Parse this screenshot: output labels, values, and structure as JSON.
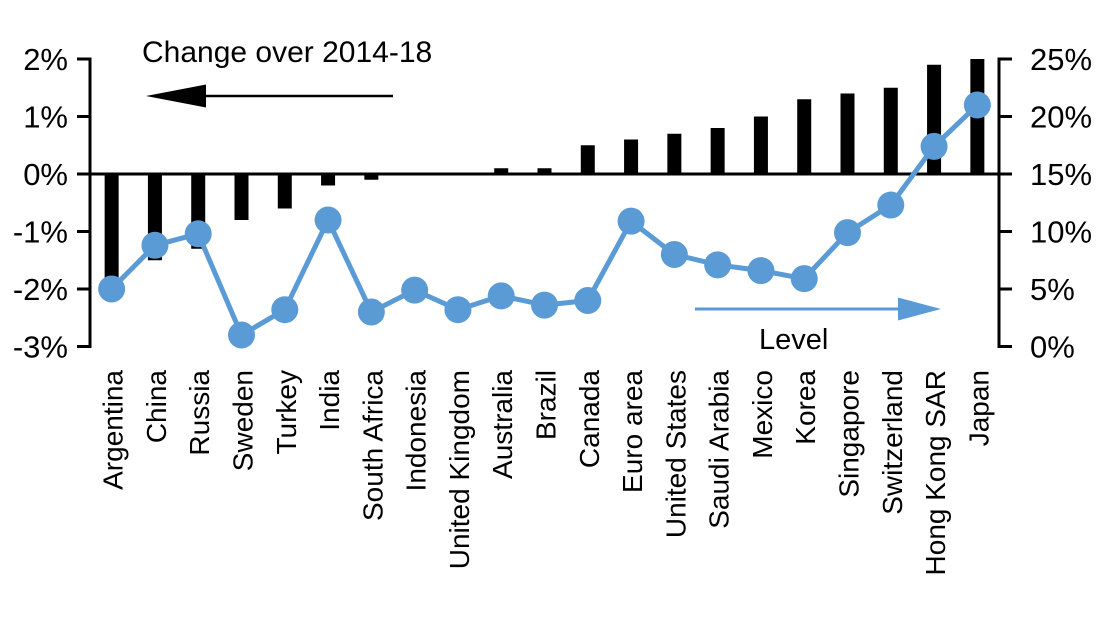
{
  "chart_data": {
    "type": "combo",
    "title": "",
    "categories": [
      "Argentina",
      "China",
      "Russia",
      "Sweden",
      "Turkey",
      "India",
      "South Africa",
      "Indonesia",
      "United Kingdom",
      "Australia",
      "Brazil",
      "Canada",
      "Euro area",
      "United States",
      "Saudi Arabia",
      "Mexico",
      "Korea",
      "Singapore",
      "Switzerland",
      "Hong Kong SAR",
      "Japan"
    ],
    "series": [
      {
        "name": "Change over 2014-18",
        "type": "bar",
        "axis": "left",
        "color": "#000000",
        "values": [
          -1.8,
          -1.5,
          -1.3,
          -0.8,
          -0.6,
          -0.2,
          -0.1,
          0,
          0,
          0.1,
          0.1,
          0.5,
          0.6,
          0.7,
          0.8,
          1.0,
          1.3,
          1.4,
          1.5,
          1.9,
          2.0
        ]
      },
      {
        "name": "Level",
        "type": "line",
        "axis": "right",
        "color": "#5B9BD5",
        "values": [
          5.0,
          8.8,
          9.8,
          1.0,
          3.2,
          11.0,
          3.0,
          4.9,
          3.2,
          4.4,
          3.6,
          4.0,
          10.9,
          8.0,
          7.1,
          6.6,
          5.9,
          9.9,
          12.3,
          17.4,
          21.0
        ]
      }
    ],
    "left_axis": {
      "min": -3,
      "max": 2,
      "tick_step": 1,
      "unit": "%",
      "tick_labels": [
        "2%",
        "1%",
        "0%",
        "-1%",
        "-2%",
        "-3%"
      ]
    },
    "right_axis": {
      "min": 0,
      "max": 25,
      "tick_step": 5,
      "unit": "%",
      "tick_labels": [
        "25%",
        "20%",
        "15%",
        "10%",
        "5%",
        "0%"
      ]
    },
    "grid": false,
    "legend": "none",
    "annotations": [
      {
        "text": "Change over 2014-18",
        "text_color": "#000000",
        "arrow_direction": "left",
        "arrow_color": "#000000",
        "refers_to": "bar series (left axis)"
      },
      {
        "text": "Level",
        "text_color": "#000000",
        "arrow_direction": "right",
        "arrow_color": "#5B9BD5",
        "refers_to": "line series (right axis)"
      }
    ]
  }
}
